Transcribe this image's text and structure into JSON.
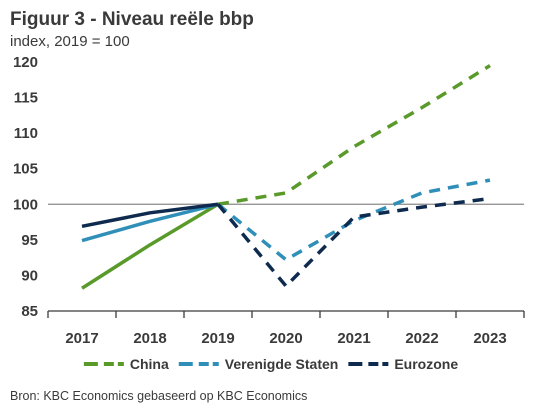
{
  "title": "Figuur 3 - Niveau reële bbp",
  "subtitle": "index, 2019 = 100",
  "source": "Bron: KBC Economics gebaseerd op KBC Economics",
  "chart_data": {
    "type": "line",
    "title": "Figuur 3 - Niveau reële bbp",
    "subtitle": "index, 2019 = 100",
    "categories": [
      "2017",
      "2018",
      "2019",
      "2020",
      "2021",
      "2022",
      "2023"
    ],
    "ylim": [
      85,
      120
    ],
    "yticks": [
      85,
      90,
      95,
      100,
      105,
      110,
      115,
      120
    ],
    "reference_line": 100,
    "legend_position": "bottom",
    "series": [
      {
        "name": "China",
        "color": "#5a9a2a",
        "values": [
          88.2,
          94.3,
          100.0,
          101.6,
          108.1,
          113.6,
          119.5
        ],
        "dashed_from_index": 2
      },
      {
        "name": "Verenigde Staten",
        "color": "#2f8fb8",
        "values": [
          94.9,
          97.6,
          100.0,
          92.2,
          97.7,
          101.6,
          103.4
        ],
        "dashed_from_index": 2
      },
      {
        "name": "Eurozone",
        "color": "#0e2a4e",
        "values": [
          96.9,
          98.8,
          100.0,
          88.5,
          98.2,
          99.6,
          100.8
        ],
        "dashed_from_index": 2
      }
    ]
  }
}
